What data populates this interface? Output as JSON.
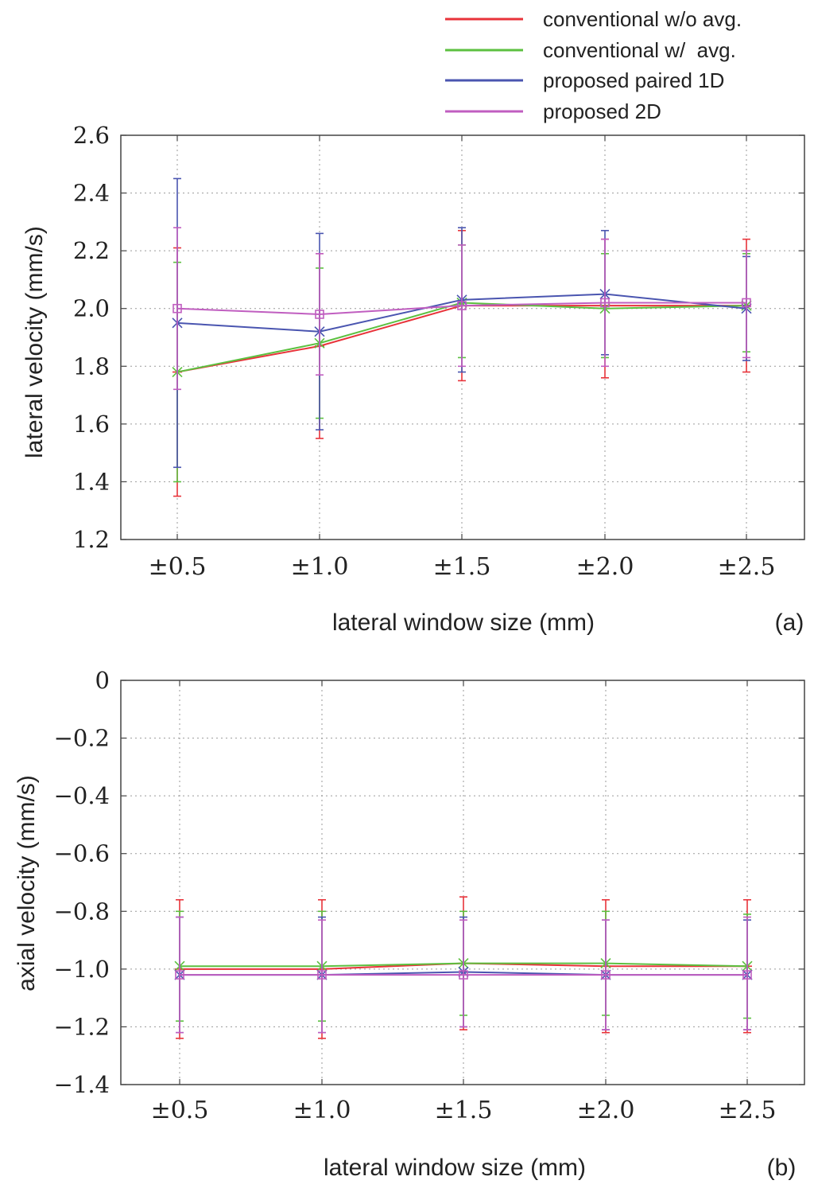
{
  "legend": {
    "placement": "top-right",
    "entries": [
      {
        "label": "conventional w/o avg.",
        "color": "#e8333a"
      },
      {
        "label": "conventional w/  avg.",
        "color": "#5cc040"
      },
      {
        "label": "proposed paired 1D",
        "color": "#4a55b0"
      },
      {
        "label": "proposed 2D",
        "color": "#c05ec0"
      }
    ]
  },
  "chart_data": [
    {
      "type": "line",
      "panel_label": "(a)",
      "xlabel": "lateral window size (mm)",
      "ylabel": "lateral velocity (mm/s)",
      "categories": [
        "±0.5",
        "±1.0",
        "±1.5",
        "±2.0",
        "±2.5"
      ],
      "ylim": [
        1.2,
        2.6
      ],
      "yticks": [
        1.2,
        1.4,
        1.6,
        1.8,
        2.0,
        2.2,
        2.4,
        2.6
      ],
      "ytick_labels": [
        "1.2",
        "1.4",
        "1.6",
        "1.8",
        "2.0",
        "2.2",
        "2.4",
        "2.6"
      ],
      "grid": true,
      "series": [
        {
          "name": "conventional w/o avg.",
          "marker": "plus",
          "values": [
            1.78,
            1.87,
            2.01,
            2.01,
            2.01
          ],
          "err_low": [
            1.35,
            1.55,
            1.75,
            1.76,
            1.78
          ],
          "err_high": [
            2.21,
            2.19,
            2.27,
            2.24,
            2.24
          ]
        },
        {
          "name": "conventional w/  avg.",
          "marker": "x",
          "values": [
            1.78,
            1.88,
            2.02,
            2.0,
            2.01
          ],
          "err_low": [
            1.4,
            1.62,
            1.83,
            1.83,
            1.85
          ],
          "err_high": [
            2.16,
            2.14,
            2.22,
            2.19,
            2.19
          ]
        },
        {
          "name": "proposed paired 1D",
          "marker": "star",
          "values": [
            1.95,
            1.92,
            2.03,
            2.05,
            2.0
          ],
          "err_low": [
            1.45,
            1.58,
            1.78,
            1.84,
            1.82
          ],
          "err_high": [
            2.45,
            2.26,
            2.28,
            2.27,
            2.18
          ]
        },
        {
          "name": "proposed 2D",
          "marker": "square",
          "values": [
            2.0,
            1.98,
            2.01,
            2.02,
            2.02
          ],
          "err_low": [
            1.72,
            1.77,
            1.8,
            1.8,
            1.83
          ],
          "err_high": [
            2.28,
            2.19,
            2.22,
            2.24,
            2.2
          ]
        }
      ]
    },
    {
      "type": "line",
      "panel_label": "(b)",
      "xlabel": "lateral window size (mm)",
      "ylabel": "axial velocity (mm/s)",
      "categories": [
        "±0.5",
        "±1.0",
        "±1.5",
        "±2.0",
        "±2.5"
      ],
      "ylim": [
        -1.4,
        0
      ],
      "yticks": [
        -1.4,
        -1.2,
        -1.0,
        -0.8,
        -0.6,
        -0.4,
        -0.2,
        0
      ],
      "ytick_labels": [
        "−1.4",
        "−1.2",
        "−1.0",
        "−0.8",
        "−0.6",
        "−0.4",
        "−0.2",
        "0"
      ],
      "grid": true,
      "series": [
        {
          "name": "conventional w/o avg.",
          "marker": "plus",
          "values": [
            -1.0,
            -1.0,
            -0.98,
            -0.99,
            -0.99
          ],
          "err_low": [
            -1.24,
            -1.24,
            -1.21,
            -1.22,
            -1.22
          ],
          "err_high": [
            -0.76,
            -0.76,
            -0.75,
            -0.76,
            -0.76
          ]
        },
        {
          "name": "conventional w/  avg.",
          "marker": "x",
          "values": [
            -0.99,
            -0.99,
            -0.98,
            -0.98,
            -0.99
          ],
          "err_low": [
            -1.18,
            -1.18,
            -1.16,
            -1.16,
            -1.17
          ],
          "err_high": [
            -0.8,
            -0.8,
            -0.8,
            -0.8,
            -0.81
          ]
        },
        {
          "name": "proposed paired 1D",
          "marker": "star",
          "values": [
            -1.02,
            -1.02,
            -1.01,
            -1.02,
            -1.02
          ],
          "err_low": [
            -1.22,
            -1.22,
            -1.2,
            -1.21,
            -1.21
          ],
          "err_high": [
            -0.82,
            -0.82,
            -0.82,
            -0.83,
            -0.83
          ]
        },
        {
          "name": "proposed 2D",
          "marker": "square",
          "values": [
            -1.02,
            -1.02,
            -1.02,
            -1.02,
            -1.02
          ],
          "err_low": [
            -1.22,
            -1.22,
            -1.2,
            -1.21,
            -1.21
          ],
          "err_high": [
            -0.82,
            -0.83,
            -0.83,
            -0.83,
            -0.82
          ]
        }
      ]
    }
  ]
}
